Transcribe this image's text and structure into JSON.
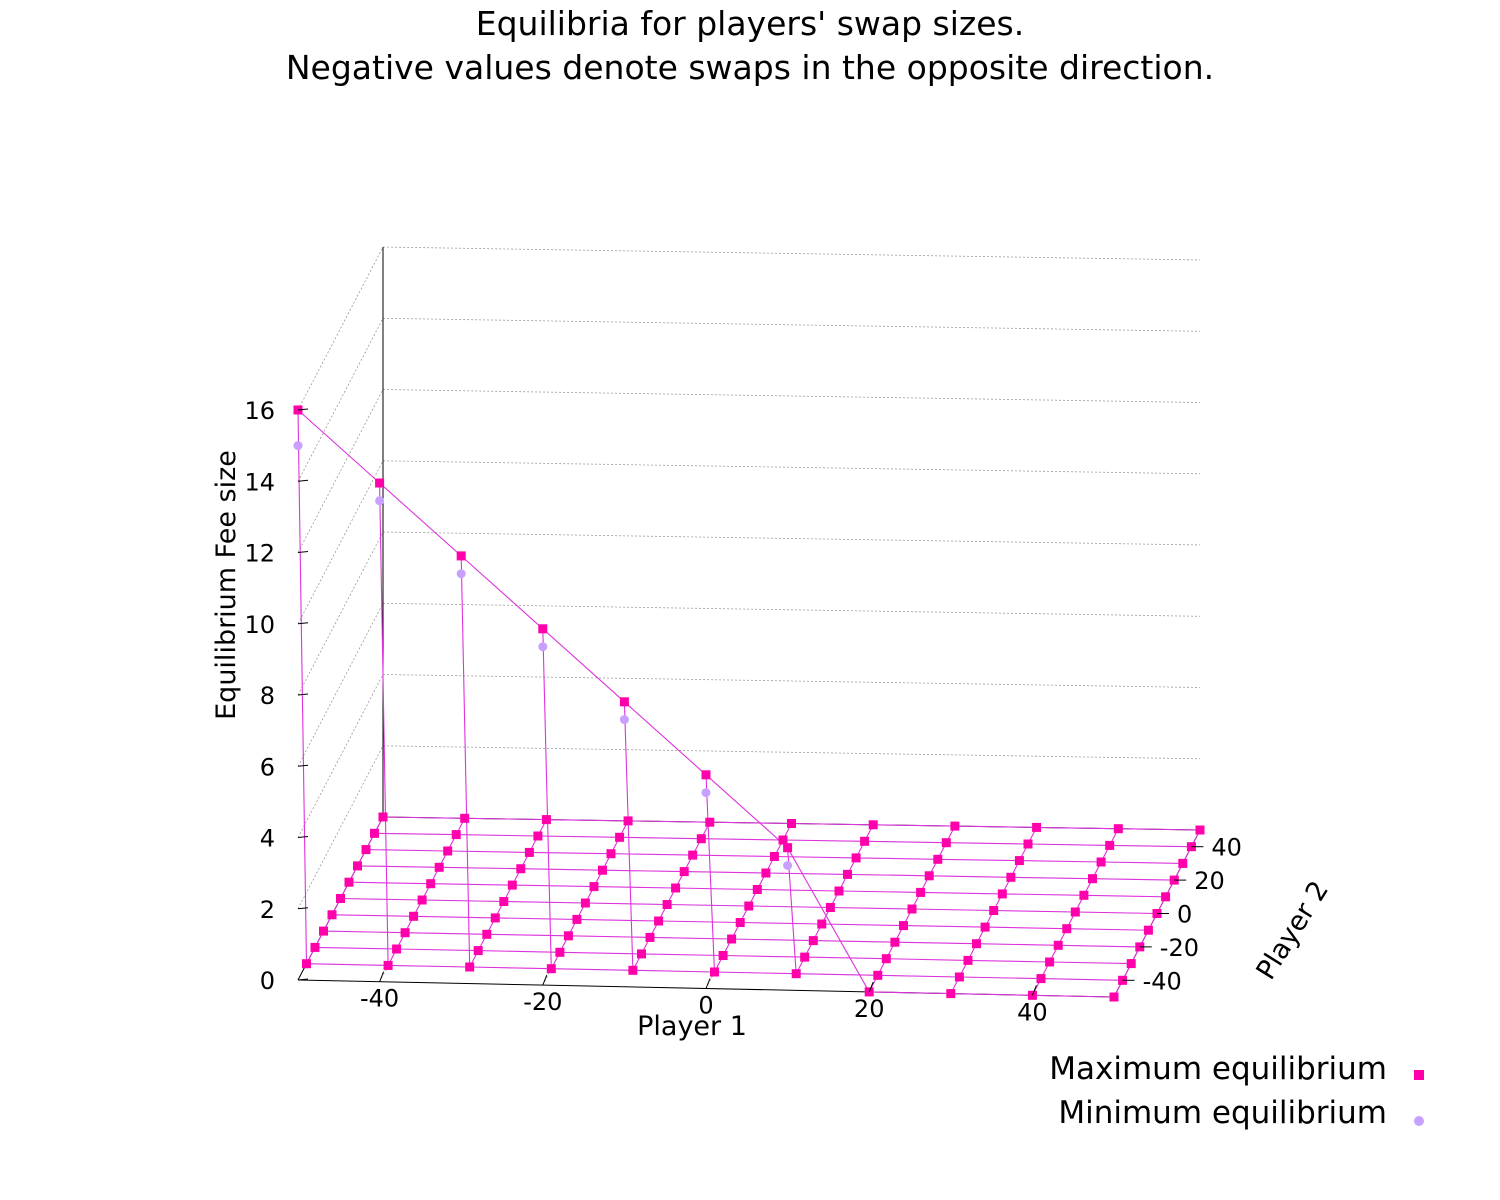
{
  "chart_data": {
    "type": "surface3d",
    "title_lines": [
      "Equilibria for players' swap sizes.",
      "Negative values denote swaps in the opposite direction."
    ],
    "xlabel": "Player 1",
    "ylabel": "Player 2",
    "zlabel": "Equilibrium Fee size",
    "xlim": [
      -50,
      50
    ],
    "ylim": [
      -50,
      50
    ],
    "zlim": [
      0,
      16
    ],
    "x_ticks": [
      -40,
      -20,
      0,
      20,
      40
    ],
    "y_ticks": [
      40,
      20,
      0,
      -20,
      -40
    ],
    "z_ticks": [
      0,
      2,
      4,
      6,
      8,
      10,
      12,
      14,
      16
    ],
    "grid": true,
    "legend_position": "bottom-right",
    "x": [
      -50,
      -40,
      -30,
      -20,
      -10,
      0,
      10,
      20,
      30,
      40,
      50
    ],
    "y": [
      -50,
      -40,
      -30,
      -20,
      -10,
      0,
      10,
      20,
      30,
      40,
      50
    ],
    "series": [
      {
        "name": "Maximum equilibrium",
        "marker": "square",
        "color": "#ff00aa",
        "z": [
          [
            16,
            14,
            12,
            10,
            8,
            6,
            4,
            0,
            0,
            0,
            0
          ],
          [
            0,
            0,
            0,
            0,
            0,
            0,
            0,
            0,
            0,
            0,
            0
          ],
          [
            0,
            0,
            0,
            0,
            0,
            0,
            0,
            0,
            0,
            0,
            0
          ],
          [
            0,
            0,
            0,
            0,
            0,
            0,
            0,
            0,
            0,
            0,
            0
          ],
          [
            0,
            0,
            0,
            0,
            0,
            0,
            0,
            0,
            0,
            0,
            0
          ],
          [
            0,
            0,
            0,
            0,
            0,
            0,
            0,
            0,
            0,
            0,
            0
          ],
          [
            0,
            0,
            0,
            0,
            0,
            0,
            0,
            0,
            0,
            0,
            0
          ],
          [
            0,
            0,
            0,
            0,
            0,
            0,
            0,
            0,
            0,
            0,
            0
          ],
          [
            0,
            0,
            0,
            0,
            0,
            0,
            0,
            0,
            0,
            0,
            0
          ],
          [
            0,
            0,
            0,
            0,
            0,
            0,
            0,
            0,
            0,
            0,
            0
          ],
          [
            0,
            0,
            0,
            0,
            0,
            0,
            0,
            0,
            0,
            0,
            0
          ]
        ]
      },
      {
        "name": "Minimum equilibrium",
        "marker": "circle",
        "color": "#c8a0ff",
        "z": [
          [
            15,
            13.5,
            11.5,
            9.5,
            7.5,
            5.5,
            3.5,
            0,
            0,
            0,
            0
          ],
          [
            0,
            0,
            0,
            0,
            0,
            0,
            0,
            0,
            0,
            0,
            0
          ],
          [
            0,
            0,
            0,
            0,
            0,
            0,
            0,
            0,
            0,
            0,
            0
          ],
          [
            0,
            0,
            0,
            0,
            0,
            0,
            0,
            0,
            0,
            0,
            0
          ],
          [
            0,
            0,
            0,
            0,
            0,
            0,
            0,
            0,
            0,
            0,
            0
          ],
          [
            0,
            0,
            0,
            0,
            0,
            0,
            0,
            0,
            0,
            0,
            0
          ],
          [
            0,
            0,
            0,
            0,
            0,
            0,
            0,
            0,
            0,
            0,
            0
          ],
          [
            0,
            0,
            0,
            0,
            0,
            0,
            0,
            0,
            0,
            0,
            0
          ],
          [
            0,
            0,
            0,
            0,
            0,
            0,
            0,
            0,
            0,
            0,
            0
          ],
          [
            0,
            0,
            0,
            0,
            0,
            0,
            0,
            0,
            0,
            0,
            0
          ],
          [
            0,
            0,
            0,
            0,
            0,
            0,
            0,
            0,
            0,
            0,
            0
          ]
        ]
      }
    ]
  }
}
